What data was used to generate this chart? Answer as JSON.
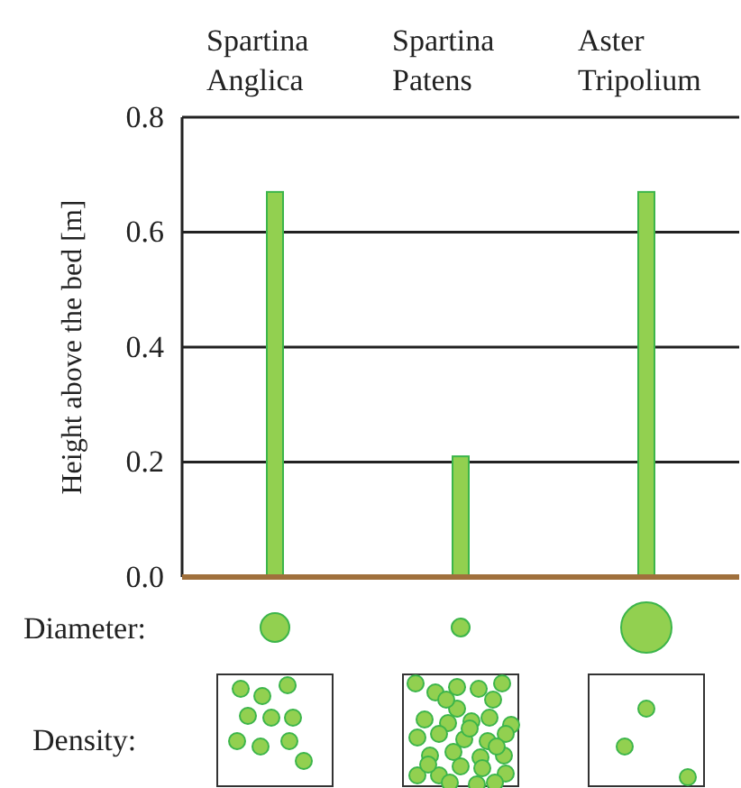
{
  "chart_data": {
    "type": "bar",
    "ylabel": "Height above the bed [m]",
    "categories": [
      "Spartina Anglica",
      "Spartina Patens",
      "Aster Tripolium"
    ],
    "values": [
      0.67,
      0.21,
      0.67
    ],
    "color": "#92d050",
    "ylim": [
      0,
      0.8
    ],
    "yticks": [
      {
        "value": 0,
        "label": "0.0"
      },
      0.2,
      0.4,
      0.6,
      0.8
    ],
    "grid": "y",
    "annotations": [
      "Diameter:",
      "Density:"
    ]
  }
}
